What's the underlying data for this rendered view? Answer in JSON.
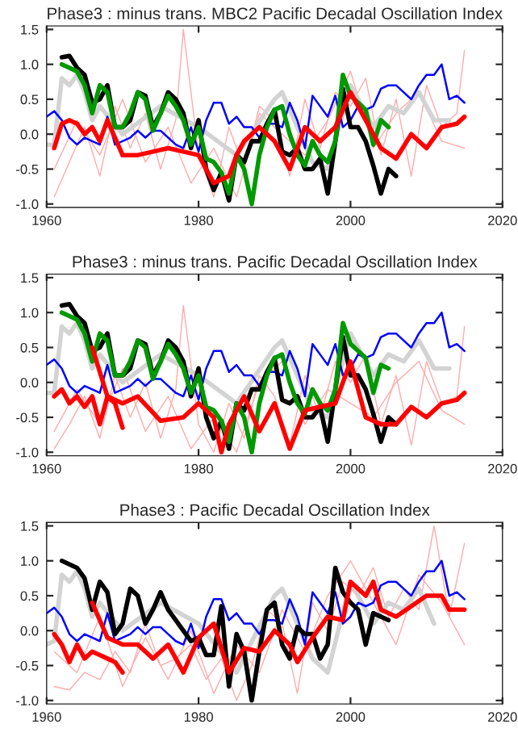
{
  "chart_data": [
    {
      "type": "line",
      "title": "Phase3 : minus trans. MBC2 Pacific Decadal Oscillation Index",
      "xlim": [
        1960,
        2020
      ],
      "xticks": [
        1960,
        1980,
        2000,
        2020
      ],
      "ylim": [
        -1.05,
        1.55
      ],
      "yticks": [
        {
          "value": -1.0,
          "label": "-1.0"
        },
        {
          "value": -0.5,
          "label": "-0.5"
        },
        {
          "value": 0.0,
          "label": "0.0"
        },
        {
          "value": 0.5,
          "label": "0.5"
        },
        {
          "value": 1.0,
          "label": "1.0"
        },
        {
          "value": 1.5,
          "label": "1.5"
        }
      ],
      "grid": false,
      "legend": false,
      "series": [
        {
          "color": "#ffaaaa",
          "x": [
            1961,
            1963,
            1965,
            1967,
            1969,
            1971,
            1973,
            1975,
            1977,
            1978,
            1980,
            1982,
            1984,
            1986,
            1988,
            1990,
            1992,
            1994,
            1996,
            1998,
            2000,
            2002,
            2004,
            2006,
            2008,
            2010,
            2012,
            2014,
            2015
          ],
          "values": [
            -0.9,
            -0.4,
            0.1,
            -0.6,
            0.4,
            -0.2,
            0.3,
            -0.5,
            0.2,
            1.5,
            -0.3,
            -0.9,
            0.1,
            -0.5,
            0.4,
            0.2,
            -0.6,
            0.5,
            -0.2,
            0.6,
            0.4,
            0.8,
            -0.3,
            0.5,
            -0.6,
            0.7,
            0.1,
            0.3,
            1.2
          ]
        },
        {
          "color": "#ffaaaa",
          "x": [
            1961,
            1964,
            1967,
            1970,
            1973,
            1976,
            1979,
            1982,
            1985,
            1988,
            1991,
            1994,
            1997,
            2000,
            2003,
            2006,
            2009,
            2012,
            2015
          ],
          "values": [
            -0.5,
            0.2,
            -0.3,
            0.5,
            -0.4,
            0.1,
            -0.7,
            -0.2,
            -0.9,
            0.3,
            null,
            -0.3,
            0.2,
            0.9,
            -0.2,
            0.3,
            0.6,
            -0.1,
            -0.2
          ]
        },
        {
          "color": "#d3d3d3",
          "x": [
            1960,
            1961,
            1962,
            1963,
            1964,
            1965,
            1966,
            1967,
            1970,
            1975,
            1980,
            1985,
            1990,
            1991,
            1995,
            1997,
            2000,
            2003,
            2005,
            2007,
            2009,
            2011,
            2013
          ],
          "values": [
            -0.15,
            -0.15,
            0.8,
            0.7,
            0.85,
            0.6,
            0.2,
            0.4,
            0.0,
            0.4,
            0.1,
            -0.3,
            0.5,
            0.6,
            -0.4,
            -0.5,
            0.7,
            0.1,
            0.4,
            0.3,
            0.6,
            0.2,
            0.2
          ]
        },
        {
          "color": "#0000ff",
          "x": [
            1960,
            1961,
            1962,
            1963,
            1964,
            1965,
            1966,
            1967,
            1968,
            1969,
            1970,
            1971,
            1972,
            1973,
            1974,
            1975,
            1976,
            1977,
            1978,
            1979,
            1980,
            1981,
            1982,
            1983,
            1984,
            1985,
            1986,
            1987,
            1988,
            1989,
            1990,
            1991,
            1992,
            1993,
            1994,
            1995,
            1996,
            1997,
            1998,
            1999,
            2000,
            2001,
            2002,
            2003,
            2004,
            2005,
            2006,
            2007,
            2008,
            2009,
            2010,
            2011,
            2012,
            2013,
            2014,
            2015
          ],
          "values": [
            0.25,
            0.33,
            0.2,
            -0.05,
            -0.15,
            -0.05,
            -0.1,
            -0.15,
            0.25,
            -0.15,
            -0.1,
            -0.05,
            0.05,
            -0.05,
            0.05,
            0.05,
            -0.05,
            -0.15,
            -0.2,
            0.1,
            -0.25,
            0.2,
            0.45,
            0.45,
            0.15,
            0.25,
            0.1,
            0.1,
            -0.05,
            0.15,
            0.15,
            0.1,
            0.45,
            0.2,
            -0.2,
            0.55,
            0.4,
            0.25,
            0.55,
            0.1,
            0.2,
            0.4,
            0.35,
            0.4,
            0.65,
            0.7,
            0.7,
            0.6,
            0.5,
            0.7,
            0.85,
            0.85,
            1.0,
            0.5,
            0.55,
            0.45
          ]
        },
        {
          "color": "#000000",
          "x": [
            1962,
            1963,
            1964,
            1965,
            1966,
            1967,
            1968,
            1969,
            1970,
            1971,
            1972,
            1973,
            1974,
            1975,
            1976,
            1977,
            1978,
            1979,
            1980,
            1981,
            1982,
            1983,
            1984,
            1985,
            1986,
            1987,
            1988,
            1989,
            1990,
            1991,
            1992,
            1993,
            1994,
            1995,
            1996,
            1997,
            1998,
            1999,
            2000,
            2001,
            2002,
            2003,
            2004,
            2005,
            2006
          ],
          "values": [
            1.1,
            1.12,
            0.95,
            0.85,
            0.45,
            0.5,
            0.7,
            0.1,
            0.1,
            0.2,
            0.6,
            0.55,
            0.1,
            0.3,
            0.6,
            0.5,
            0.3,
            -0.2,
            0.2,
            -0.5,
            -0.8,
            -0.55,
            -0.95,
            -0.3,
            -0.4,
            -0.1,
            -0.1,
            0.15,
            0.35,
            -0.25,
            -0.3,
            -0.2,
            -0.5,
            -0.5,
            -0.35,
            -0.85,
            -0.1,
            0.65,
            0.1,
            0.1,
            -0.1,
            -0.45,
            -0.85,
            -0.5,
            -0.6
          ]
        },
        {
          "color": "#009900",
          "x": [
            1962,
            1963,
            1964,
            1965,
            1966,
            1967,
            1968,
            1969,
            1970,
            1971,
            1972,
            1973,
            1974,
            1975,
            1976,
            1977,
            1978,
            1979,
            1980,
            1981,
            1982,
            1983,
            1984,
            1985,
            1986,
            1987,
            1988,
            1989,
            1990,
            1991,
            1992,
            1993,
            1994,
            1995,
            1996,
            1997,
            1998,
            1999,
            2000,
            2001,
            2002,
            2003,
            2004,
            2005
          ],
          "values": [
            1.0,
            0.95,
            0.9,
            0.7,
            0.3,
            0.7,
            0.6,
            0.1,
            0.1,
            0.3,
            0.6,
            0.5,
            0.05,
            0.3,
            0.55,
            0.4,
            0.2,
            -0.15,
            0.1,
            -0.35,
            -0.4,
            -0.55,
            -0.85,
            -0.3,
            -0.5,
            -1.0,
            -0.3,
            0.1,
            0.35,
            0.4,
            0.0,
            -0.3,
            -0.45,
            -0.1,
            -0.3,
            -0.4,
            -0.1,
            0.85,
            0.55,
            0.45,
            0.35,
            -0.15,
            0.2,
            0.1
          ]
        },
        {
          "color": "#ff0000",
          "x": [
            1961,
            1962,
            1963,
            1964,
            1965,
            1966,
            1967,
            1968,
            1969,
            1970
          ],
          "values": [
            -0.2,
            0.15,
            0.2,
            0.15,
            0.0,
            0.1,
            -0.1,
            0.2,
            -0.05,
            -0.3
          ]
        },
        {
          "color": "#ff0000",
          "x": [
            1970,
            1972,
            1974,
            1976,
            1978,
            1980,
            1982,
            1984,
            1985,
            1986,
            1988,
            1990,
            1992,
            1994,
            1996,
            1998,
            2000,
            2002,
            2004,
            2006,
            2008,
            2010,
            2012,
            2014,
            2015
          ],
          "values": [
            -0.3,
            -0.3,
            -0.25,
            -0.2,
            -0.25,
            -0.3,
            -0.7,
            -0.6,
            -0.3,
            -0.1,
            0.1,
            -0.1,
            -0.5,
            0.1,
            -0.1,
            0.1,
            0.6,
            0.2,
            -0.2,
            -0.35,
            0.0,
            -0.2,
            0.1,
            0.15,
            0.25
          ]
        }
      ]
    },
    {
      "type": "line",
      "title": "Phase3 : minus trans. Pacific Decadal Oscillation Index",
      "xlim": [
        1960,
        2020
      ],
      "xticks": [
        1960,
        1980,
        2000,
        2020
      ],
      "ylim": [
        -1.05,
        1.55
      ],
      "yticks": [
        {
          "value": -1.0,
          "label": "-1.0"
        },
        {
          "value": -0.5,
          "label": "-0.5"
        },
        {
          "value": 0.0,
          "label": "0.0"
        },
        {
          "value": 0.5,
          "label": "0.5"
        },
        {
          "value": 1.0,
          "label": "1.0"
        },
        {
          "value": 1.5,
          "label": "1.5"
        }
      ],
      "grid": false,
      "legend": false,
      "series": [
        {
          "color": "#ffaaaa",
          "x": [
            1961,
            1963,
            1965,
            1967,
            1969,
            1971,
            1973,
            1975,
            1977,
            1978,
            1980,
            1982,
            1984,
            1986,
            1988,
            1990,
            1992,
            1994,
            1996,
            1998,
            2000,
            2002,
            2004,
            2006,
            2008,
            2010,
            2012,
            2014,
            2015
          ],
          "values": [
            -0.95,
            -0.6,
            -0.2,
            -0.8,
            0.1,
            -0.5,
            0.0,
            -0.8,
            -0.1,
            1.1,
            -0.6,
            -1.0,
            -0.3,
            -0.8,
            0.1,
            -0.2,
            -0.9,
            0.1,
            -0.5,
            0.3,
            0.0,
            0.4,
            -0.6,
            0.1,
            -0.9,
            0.3,
            -0.3,
            -0.2,
            0.8
          ]
        },
        {
          "color": "#ffaaaa",
          "x": [
            1961,
            1964,
            1967,
            1970,
            1973,
            1976,
            1979,
            1982,
            1985,
            1988,
            1991,
            1994,
            1997,
            2000,
            2003,
            2006,
            2009,
            2012,
            2015
          ],
          "values": [
            -0.7,
            -0.1,
            -0.6,
            0.2,
            -0.7,
            -0.2,
            -0.95,
            -0.5,
            -1.0,
            0.0,
            0.3,
            -0.6,
            -0.1,
            null,
            -0.5,
            0.0,
            0.3,
            -0.4,
            -0.6
          ]
        },
        {
          "color": "#d3d3d3",
          "x": [
            1960,
            1961,
            1962,
            1963,
            1964,
            1965,
            1966,
            1967,
            1970,
            1975,
            1980,
            1985,
            1990,
            1991,
            1995,
            1997,
            2000,
            2003,
            2005,
            2007,
            2009,
            2011,
            2013
          ],
          "values": [
            -0.15,
            -0.15,
            0.8,
            0.7,
            0.85,
            0.6,
            0.2,
            0.4,
            0.0,
            0.4,
            0.1,
            -0.3,
            0.5,
            0.6,
            -0.4,
            -0.5,
            0.7,
            0.1,
            0.4,
            0.3,
            0.6,
            0.2,
            0.2
          ]
        },
        {
          "color": "#0000ff",
          "x": [
            1960,
            1961,
            1962,
            1963,
            1964,
            1965,
            1966,
            1967,
            1968,
            1969,
            1970,
            1971,
            1972,
            1973,
            1974,
            1975,
            1976,
            1977,
            1978,
            1979,
            1980,
            1981,
            1982,
            1983,
            1984,
            1985,
            1986,
            1987,
            1988,
            1989,
            1990,
            1991,
            1992,
            1993,
            1994,
            1995,
            1996,
            1997,
            1998,
            1999,
            2000,
            2001,
            2002,
            2003,
            2004,
            2005,
            2006,
            2007,
            2008,
            2009,
            2010,
            2011,
            2012,
            2013,
            2014,
            2015
          ],
          "values": [
            0.25,
            0.33,
            0.2,
            -0.05,
            -0.15,
            -0.05,
            -0.1,
            -0.15,
            0.25,
            -0.15,
            -0.1,
            -0.05,
            0.05,
            -0.05,
            0.05,
            0.05,
            -0.05,
            -0.15,
            -0.2,
            0.1,
            -0.25,
            0.2,
            0.45,
            0.45,
            0.15,
            0.25,
            0.1,
            0.1,
            -0.05,
            0.15,
            0.15,
            0.1,
            0.45,
            0.2,
            -0.2,
            0.55,
            0.4,
            0.25,
            0.55,
            0.1,
            0.2,
            0.4,
            0.35,
            0.4,
            0.65,
            0.7,
            0.7,
            0.6,
            0.5,
            0.7,
            0.85,
            0.85,
            1.0,
            0.5,
            0.55,
            0.45
          ]
        },
        {
          "color": "#000000",
          "x": [
            1962,
            1963,
            1964,
            1965,
            1966,
            1967,
            1968,
            1969,
            1970,
            1971,
            1972,
            1973,
            1974,
            1975,
            1976,
            1977,
            1978,
            1979,
            1980,
            1981,
            1982,
            1983,
            1984,
            1985,
            1986,
            1987,
            1988,
            1989,
            1990,
            1991,
            1992,
            1993,
            1994,
            1995,
            1996,
            1997,
            1998,
            1999,
            2000,
            2001,
            2002,
            2003,
            2004,
            2005,
            2006
          ],
          "values": [
            1.1,
            1.12,
            0.95,
            0.85,
            0.45,
            0.5,
            0.7,
            0.1,
            0.1,
            0.2,
            0.6,
            0.55,
            0.1,
            0.3,
            0.6,
            0.5,
            0.3,
            -0.2,
            0.2,
            -0.5,
            -0.8,
            -0.55,
            -0.95,
            -0.3,
            -0.4,
            -0.1,
            -0.1,
            0.15,
            0.35,
            -0.25,
            -0.3,
            -0.2,
            -0.5,
            -0.5,
            -0.35,
            -0.85,
            -0.1,
            0.65,
            0.1,
            0.1,
            -0.1,
            -0.45,
            -0.85,
            -0.5,
            -0.6
          ]
        },
        {
          "color": "#009900",
          "x": [
            1962,
            1963,
            1964,
            1965,
            1966,
            1967,
            1968,
            1969,
            1970,
            1971,
            1972,
            1973,
            1974,
            1975,
            1976,
            1977,
            1978,
            1979,
            1980,
            1981,
            1982,
            1983,
            1984,
            1985,
            1986,
            1987,
            1988,
            1989,
            1990,
            1991,
            1992,
            1993,
            1994,
            1995,
            1996,
            1997,
            1998,
            1999,
            2000,
            2001,
            2002,
            2003,
            2004,
            2005
          ],
          "values": [
            1.0,
            0.95,
            0.9,
            0.7,
            0.3,
            0.7,
            0.6,
            0.1,
            0.1,
            0.3,
            0.6,
            0.5,
            0.05,
            0.3,
            0.55,
            0.4,
            0.2,
            -0.15,
            0.1,
            -0.35,
            -0.4,
            -0.55,
            -0.85,
            -0.3,
            -0.5,
            -1.0,
            -0.3,
            0.1,
            0.35,
            0.4,
            0.0,
            -0.3,
            -0.45,
            -0.1,
            -0.3,
            -0.4,
            -0.1,
            0.85,
            0.55,
            0.45,
            0.35,
            -0.15,
            0.25,
            0.2
          ]
        },
        {
          "color": "#ff0000",
          "x": [
            1961,
            1962,
            1963,
            1964,
            1965,
            1966,
            1967,
            1968,
            1969,
            1970
          ],
          "values": [
            -0.2,
            -0.1,
            -0.3,
            -0.2,
            -0.35,
            -0.2,
            -0.6,
            -0.2,
            -0.3,
            -0.65
          ]
        },
        {
          "color": "#ff0000",
          "x": [
            1966,
            1968,
            1970,
            1972,
            1975,
            1978,
            1980,
            1982,
            1983,
            1984,
            1986,
            1988,
            1990,
            1992,
            1994,
            1996,
            1998,
            2000,
            2002,
            2004,
            2006,
            2008,
            2010,
            2012,
            2014,
            2015
          ],
          "values": [
            0.5,
            -0.2,
            -0.3,
            -0.2,
            -0.55,
            -0.5,
            -0.3,
            -0.5,
            -1.0,
            -0.6,
            -0.2,
            -0.7,
            -0.3,
            -0.95,
            -0.4,
            -0.35,
            -0.3,
            0.3,
            -0.5,
            -0.6,
            -0.6,
            -0.35,
            -0.5,
            -0.3,
            -0.25,
            -0.15
          ]
        }
      ]
    },
    {
      "type": "line",
      "title": "Phase3 : Pacific Decadal Oscillation Index",
      "xlim": [
        1960,
        2020
      ],
      "xticks": [
        1960,
        1980,
        2000,
        2020
      ],
      "ylim": [
        -1.05,
        1.55
      ],
      "yticks": [
        {
          "value": -1.0,
          "label": "-1.0"
        },
        {
          "value": -0.5,
          "label": "-0.5"
        },
        {
          "value": 0.0,
          "label": "0.0"
        },
        {
          "value": 0.5,
          "label": "0.5"
        },
        {
          "value": 1.0,
          "label": "1.0"
        },
        {
          "value": 1.5,
          "label": "1.5"
        }
      ],
      "grid": false,
      "legend": false,
      "series": [
        {
          "color": "#ffaaaa",
          "x": [
            1961,
            1963,
            1965,
            1967,
            1969,
            1971,
            1973,
            1975,
            1977,
            1979,
            1981,
            1983,
            1985,
            1987,
            1989,
            1991,
            1993,
            1995,
            1997,
            1999,
            2001,
            2003,
            2005,
            2007,
            2009,
            2011,
            2013,
            2015
          ],
          "values": [
            -0.8,
            -0.85,
            -0.6,
            -0.7,
            -0.3,
            -0.6,
            0.1,
            -0.5,
            -0.4,
            -0.2,
            -0.7,
            -0.4,
            -1.0,
            -0.5,
            0.3,
            0.1,
            -0.9,
            0.4,
            0.0,
            0.7,
            0.5,
            0.9,
            0.2,
            0.6,
            0.3,
            1.5,
            0.2,
            1.25
          ]
        },
        {
          "color": "#ffaaaa",
          "x": [
            1961,
            1964,
            1967,
            1970,
            1973,
            1976,
            1979,
            1982,
            1985,
            1988,
            1991,
            1994,
            1997,
            2000,
            2003,
            2006,
            2009,
            2012,
            2015
          ],
          "values": [
            -0.3,
            -0.6,
            0.2,
            -0.8,
            -0.1,
            -0.7,
            0.0,
            -0.9,
            -0.2,
            -0.6,
            0.3,
            -0.3,
            0.5,
            1.0,
            0.4,
            -0.2,
            0.8,
            0.4,
            -0.2
          ]
        },
        {
          "color": "#d3d3d3",
          "x": [
            1960,
            1961,
            1962,
            1963,
            1964,
            1965,
            1966,
            1967,
            1970,
            1975,
            1980,
            1985,
            1990,
            1991,
            1995,
            1997,
            2000,
            2003,
            2005,
            2007,
            2009,
            2011
          ],
          "values": [
            -0.2,
            -0.15,
            0.8,
            0.7,
            0.85,
            0.6,
            0.2,
            0.4,
            0.0,
            0.4,
            0.1,
            -0.6,
            0.5,
            0.6,
            -0.4,
            -0.6,
            0.7,
            0.1,
            0.4,
            0.3,
            0.6,
            0.1
          ]
        },
        {
          "color": "#0000ff",
          "x": [
            1960,
            1961,
            1962,
            1963,
            1964,
            1965,
            1966,
            1967,
            1968,
            1969,
            1970,
            1971,
            1972,
            1973,
            1974,
            1975,
            1976,
            1977,
            1978,
            1979,
            1980,
            1981,
            1982,
            1983,
            1984,
            1985,
            1986,
            1987,
            1988,
            1989,
            1990,
            1991,
            1992,
            1993,
            1994,
            1995,
            1996,
            1997,
            1998,
            1999,
            2000,
            2001,
            2002,
            2003,
            2004,
            2005,
            2006,
            2007,
            2008,
            2009,
            2010,
            2011,
            2012,
            2013,
            2014,
            2015
          ],
          "values": [
            0.25,
            0.33,
            0.2,
            -0.05,
            -0.15,
            -0.05,
            -0.1,
            -0.15,
            0.25,
            -0.15,
            -0.1,
            -0.05,
            0.05,
            -0.05,
            0.05,
            0.05,
            -0.05,
            -0.15,
            -0.2,
            0.1,
            -0.25,
            0.2,
            0.45,
            0.45,
            0.15,
            0.25,
            0.1,
            0.1,
            -0.05,
            0.15,
            0.15,
            0.1,
            0.45,
            0.2,
            -0.2,
            0.55,
            0.4,
            0.25,
            0.55,
            0.1,
            0.2,
            0.4,
            0.35,
            0.4,
            0.65,
            0.7,
            0.7,
            0.6,
            0.5,
            0.7,
            0.85,
            0.85,
            1.0,
            0.5,
            0.55,
            0.45
          ]
        },
        {
          "color": "#000000",
          "x": [
            1962,
            1964,
            1965,
            1966,
            1967,
            1968,
            1969,
            1970,
            1971,
            1972,
            1973,
            1974,
            1975,
            1976,
            1978,
            1979,
            1980,
            1981,
            1982,
            1983,
            1984,
            1985,
            1986,
            1987,
            1988,
            1989,
            1990,
            1991,
            1992,
            1993,
            1994,
            1995,
            1996,
            1997,
            1998,
            1999,
            2000,
            2001,
            2002,
            2003,
            2004,
            2005
          ],
          "values": [
            1.0,
            0.9,
            0.75,
            0.3,
            0.7,
            0.55,
            -0.05,
            0.1,
            0.6,
            0.5,
            0.1,
            0.3,
            0.55,
            0.3,
            0.0,
            -0.15,
            -0.1,
            -0.35,
            -0.35,
            0.35,
            -0.8,
            -0.05,
            -0.3,
            -1.0,
            -0.3,
            0.3,
            0.4,
            -0.2,
            -0.4,
            0.05,
            -0.05,
            -0.05,
            -0.4,
            -0.2,
            0.9,
            0.55,
            0.4,
            0.3,
            -0.2,
            0.25,
            0.2,
            0.15
          ]
        },
        {
          "color": "#ff0000",
          "x": [
            1961,
            1962,
            1963,
            1964,
            1965,
            1966,
            1967,
            1968,
            1969,
            1970
          ],
          "values": [
            -0.05,
            -0.2,
            -0.45,
            -0.2,
            -0.4,
            -0.3,
            -0.35,
            -0.4,
            -0.45,
            -0.6
          ]
        },
        {
          "color": "#ff0000",
          "x": [
            1966,
            1968,
            1970,
            1972,
            1974,
            1976,
            1978,
            1980,
            1982,
            1984,
            1986,
            1988,
            1990,
            1992,
            1993,
            1995,
            1997,
            1999,
            2000,
            2002,
            2003,
            2004,
            2006,
            2008,
            2010,
            2012,
            2013,
            2015
          ],
          "values": [
            0.4,
            -0.1,
            -0.2,
            -0.2,
            -0.4,
            -0.2,
            -0.6,
            -0.1,
            0.1,
            -0.6,
            -0.25,
            -0.3,
            0.0,
            -0.2,
            -0.45,
            -0.1,
            0.2,
            0.15,
            0.7,
            0.5,
            0.7,
            0.3,
            0.2,
            0.35,
            0.5,
            0.5,
            0.3,
            0.3
          ]
        }
      ]
    }
  ]
}
